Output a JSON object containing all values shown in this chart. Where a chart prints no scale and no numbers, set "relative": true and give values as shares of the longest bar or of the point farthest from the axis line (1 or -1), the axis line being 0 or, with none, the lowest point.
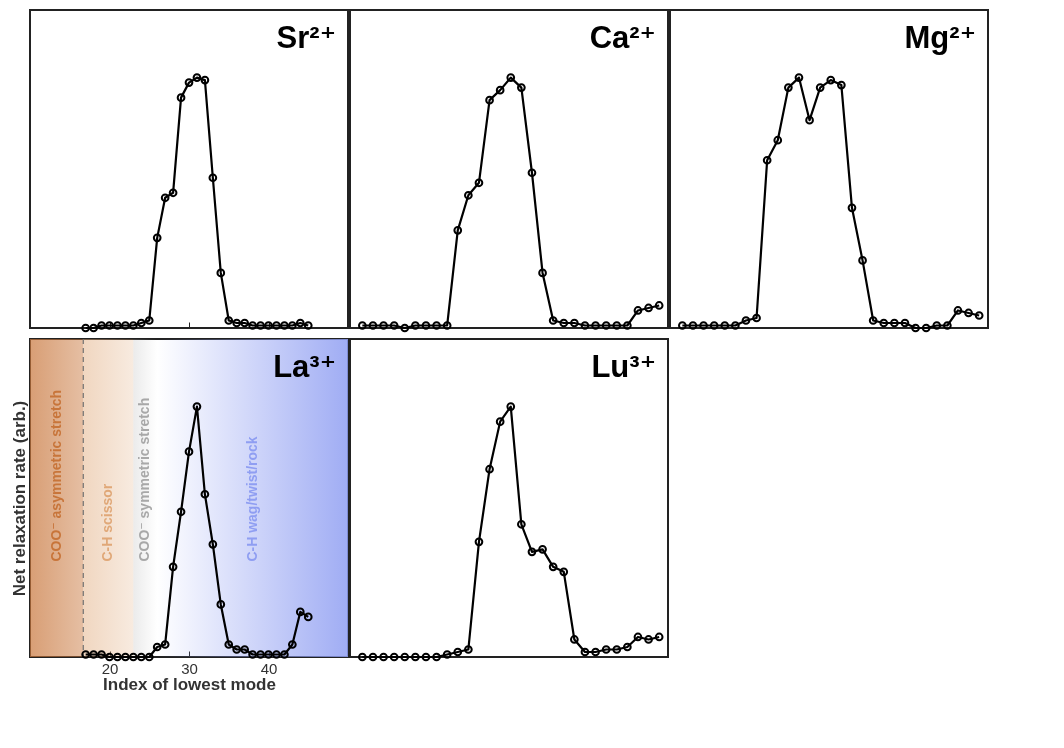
{
  "chart_data": [
    {
      "type": "line",
      "title": "Sr²⁺",
      "relative": true,
      "marker": "circle",
      "xlim": [
        10,
        50
      ],
      "xticks": [
        20,
        30,
        40
      ],
      "tick_labels": false,
      "x": [
        17,
        18,
        19,
        20,
        21,
        22,
        23,
        24,
        25,
        26,
        27,
        28,
        29,
        30,
        31,
        32,
        33,
        34,
        35,
        36,
        37,
        38,
        39,
        40,
        41,
        42,
        43,
        44,
        45
      ],
      "series": [
        {
          "color": "#000000",
          "values": [
            0.0,
            0.0,
            0.01,
            0.01,
            0.01,
            0.01,
            0.01,
            0.02,
            0.03,
            0.36,
            0.52,
            0.54,
            0.92,
            0.98,
            1,
            0.99,
            0.6,
            0.22,
            0.03,
            0.02,
            0.02,
            0.01,
            0.01,
            0.01,
            0.01,
            0.01,
            0.01,
            0.02,
            0.01
          ]
        }
      ]
    },
    {
      "type": "line",
      "title": "Ca²⁺",
      "relative": true,
      "marker": "circle",
      "categories": [
        null,
        null,
        null,
        null,
        null,
        null,
        null,
        null,
        null,
        null,
        null,
        null,
        null,
        null,
        null,
        null,
        null,
        null,
        null,
        null,
        null,
        null,
        null,
        null,
        null,
        null,
        null,
        null,
        null
      ],
      "series": [
        {
          "color": "#000000",
          "values": [
            0.01,
            0.01,
            0.01,
            0.01,
            0.0,
            0.01,
            0.01,
            0.01,
            0.01,
            0.39,
            0.53,
            0.58,
            0.91,
            0.95,
            1,
            0.96,
            0.62,
            0.22,
            0.03,
            0.02,
            0.02,
            0.01,
            0.01,
            0.01,
            0.01,
            0.01,
            0.07,
            0.08,
            0.09
          ]
        }
      ]
    },
    {
      "type": "line",
      "title": "Mg²⁺",
      "relative": true,
      "marker": "circle",
      "categories": [
        null,
        null,
        null,
        null,
        null,
        null,
        null,
        null,
        null,
        null,
        null,
        null,
        null,
        null,
        null,
        null,
        null,
        null,
        null,
        null,
        null,
        null,
        null,
        null,
        null,
        null,
        null,
        null,
        null
      ],
      "series": [
        {
          "color": "#000000",
          "values": [
            0.01,
            0.01,
            0.01,
            0.01,
            0.01,
            0.01,
            0.03,
            0.04,
            0.67,
            0.75,
            0.96,
            1,
            0.83,
            0.96,
            0.99,
            0.97,
            0.48,
            0.27,
            0.03,
            0.02,
            0.02,
            0.02,
            0.0,
            0.0,
            0.01,
            0.01,
            0.07,
            0.06,
            0.05
          ]
        }
      ]
    },
    {
      "type": "line",
      "title": "La³⁺",
      "relative": true,
      "marker": "circle",
      "xlim": [
        10,
        50
      ],
      "xticks": [
        20,
        30,
        40
      ],
      "tick_labels": "x",
      "xlabel": "Index of lowest mode",
      "ylabel": "Net relaxation rate (arb.)",
      "x": [
        17,
        18,
        19,
        20,
        21,
        22,
        23,
        24,
        25,
        26,
        27,
        28,
        29,
        30,
        31,
        32,
        33,
        34,
        35,
        36,
        37,
        38,
        39,
        40,
        41,
        42,
        43,
        44,
        45
      ],
      "series": [
        {
          "color": "#000000",
          "values": [
            0.01,
            0.01,
            0.01,
            0.0,
            0.0,
            0.0,
            0.0,
            0.0,
            0.0,
            0.04,
            0.05,
            0.36,
            0.58,
            0.82,
            1,
            0.65,
            0.45,
            0.21,
            0.05,
            0.03,
            0.03,
            0.01,
            0.01,
            0.01,
            0.01,
            0.01,
            0.05,
            0.18,
            0.16
          ]
        }
      ],
      "bands": [
        {
          "axis": "x",
          "from": 10,
          "to": 16.7,
          "label": "COO⁻ asymmetric stretch",
          "color": "#c8753a"
        },
        {
          "axis": "x",
          "from": 16.7,
          "to": 23,
          "label": "C-H scissor",
          "color": "#e0a878"
        },
        {
          "axis": "x",
          "from": 23,
          "to": 26,
          "label": "COO⁻ symmetric stretch",
          "color": "#a8a8a8"
        },
        {
          "axis": "x",
          "from": 26,
          "to": 50,
          "label": "C-H wag/twist/rock",
          "color": "#8f9ef2"
        }
      ],
      "ref_lines": [
        {
          "axis": "x",
          "value": 16.7,
          "color": "#707070",
          "line_style": "dashed"
        }
      ]
    },
    {
      "type": "line",
      "title": "Lu³⁺",
      "relative": true,
      "marker": "circle",
      "categories": [
        null,
        null,
        null,
        null,
        null,
        null,
        null,
        null,
        null,
        null,
        null,
        null,
        null,
        null,
        null,
        null,
        null,
        null,
        null,
        null,
        null,
        null,
        null,
        null,
        null,
        null,
        null,
        null,
        null
      ],
      "series": [
        {
          "color": "#000000",
          "values": [
            0.0,
            0.0,
            0.0,
            0.0,
            0.0,
            0.0,
            0.0,
            0.0,
            0.01,
            0.02,
            0.03,
            0.46,
            0.75,
            0.94,
            1,
            0.53,
            0.42,
            0.43,
            0.36,
            0.34,
            0.07,
            0.02,
            0.02,
            0.03,
            0.03,
            0.04,
            0.08,
            0.07,
            0.08
          ]
        }
      ]
    }
  ]
}
